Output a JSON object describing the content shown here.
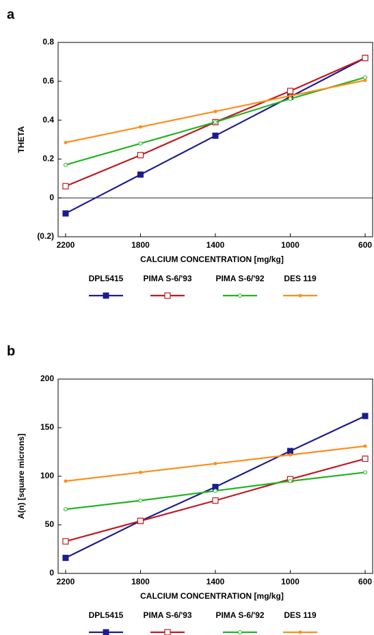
{
  "chart_data": [
    {
      "type": "line",
      "panel": "a",
      "ylabel": "THETA",
      "xlabel": "CALCIUM CONCENTRATION [mg/kg]",
      "x": [
        2200,
        1800,
        1400,
        1000,
        600
      ],
      "xlim": [
        2240,
        560
      ],
      "xticks": [
        2200,
        1800,
        1400,
        1000,
        600
      ],
      "ylim": [
        -0.2,
        0.8
      ],
      "yticks": [
        {
          "value": -0.2,
          "label": "(0.2)"
        },
        0,
        0.2,
        0.4,
        0.6,
        0.8
      ],
      "zero_line": true,
      "series": [
        {
          "name": "DPL5415",
          "color": "#1c1c8e",
          "marker": "filled-square",
          "values": [
            -0.08,
            0.12,
            0.32,
            0.52,
            0.72
          ]
        },
        {
          "name": "PIMA S-6/'93",
          "color": "#c01820",
          "marker": "open-square",
          "values": [
            0.06,
            0.22,
            0.39,
            0.55,
            0.72
          ]
        },
        {
          "name": "PIMA S-6/'92",
          "color": "#22b422",
          "marker": "open-diamond",
          "values": [
            0.17,
            0.28,
            0.39,
            0.51,
            0.62
          ]
        },
        {
          "name": "DES 119",
          "color": "#ff8c1a",
          "marker": "dot",
          "values": [
            0.285,
            0.365,
            0.445,
            0.525,
            0.605
          ]
        }
      ]
    },
    {
      "type": "line",
      "panel": "b",
      "ylabel": "A(n) [square microns]",
      "xlabel": "CALCIUM CONCENTRATION [mg/kg]",
      "x": [
        2200,
        1800,
        1400,
        1000,
        600
      ],
      "xlim": [
        2240,
        560
      ],
      "xticks": [
        2200,
        1800,
        1400,
        1000,
        600
      ],
      "ylim": [
        0,
        200
      ],
      "yticks": [
        0,
        50,
        100,
        150,
        200
      ],
      "zero_line": false,
      "series": [
        {
          "name": "DPL5415",
          "color": "#1c1c8e",
          "marker": "filled-square",
          "values": [
            16,
            54,
            89,
            126,
            162
          ]
        },
        {
          "name": "PIMA S-6/'93",
          "color": "#c01820",
          "marker": "open-square",
          "values": [
            33,
            54,
            75,
            97,
            118
          ]
        },
        {
          "name": "PIMA S-6/'92",
          "color": "#22b422",
          "marker": "open-diamond",
          "values": [
            66,
            75,
            85,
            95,
            104
          ]
        },
        {
          "name": "DES 119",
          "color": "#ff8c1a",
          "marker": "dot",
          "values": [
            95,
            104,
            113,
            122,
            131
          ]
        }
      ]
    }
  ]
}
